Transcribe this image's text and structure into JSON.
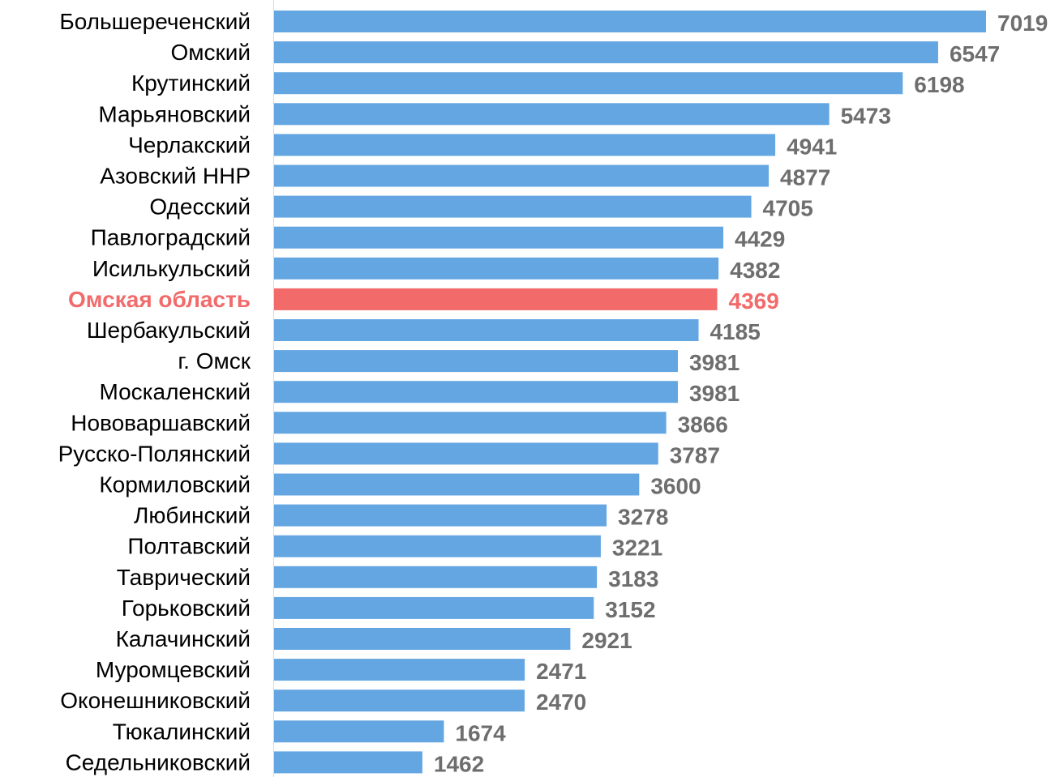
{
  "chart_data": {
    "type": "bar",
    "orientation": "horizontal",
    "title": "",
    "xlabel": "",
    "ylabel": "",
    "grid": false,
    "legend": "none",
    "xlim": [
      0,
      7100
    ],
    "categories": [
      "Большереченский",
      "Омский",
      "Крутинский",
      "Марьяновский",
      "Черлакский",
      "Азовский ННР",
      "Одесский",
      "Павлоградский",
      "Исилькульский",
      "Омская область",
      "Шербакульский",
      "г. Омск",
      "Москаленский",
      "Нововаршавский",
      "Русско-Полянский",
      "Кормиловский",
      "Любинский",
      "Полтавский",
      "Таврический",
      "Горьковский",
      "Калачинский",
      "Муромцевский",
      "Оконешниковский",
      "Тюкалинский",
      "Седельниковский"
    ],
    "values": [
      7019,
      6547,
      6198,
      5473,
      4941,
      4877,
      4705,
      4429,
      4382,
      4369,
      4185,
      3981,
      3981,
      3866,
      3787,
      3600,
      3278,
      3221,
      3183,
      3152,
      2921,
      2471,
      2470,
      1674,
      1462
    ],
    "value_labels": [
      "7019",
      "6547",
      "6198",
      "5473",
      "4941",
      "4877",
      "4705",
      "4429",
      "4382",
      "4369",
      "4185",
      "3981",
      "3981",
      "3866",
      "3787",
      "3600",
      "3278",
      "3221",
      "3183",
      "3152",
      "2921",
      "2471",
      "2470",
      "1674",
      "1462"
    ],
    "highlight_index": 9,
    "colors": {
      "bar": "#63a6e2",
      "highlight": "#f26a6a",
      "value_text": "#6e6e6e",
      "label_text": "#000000",
      "axis": "#d9d9d9"
    }
  }
}
